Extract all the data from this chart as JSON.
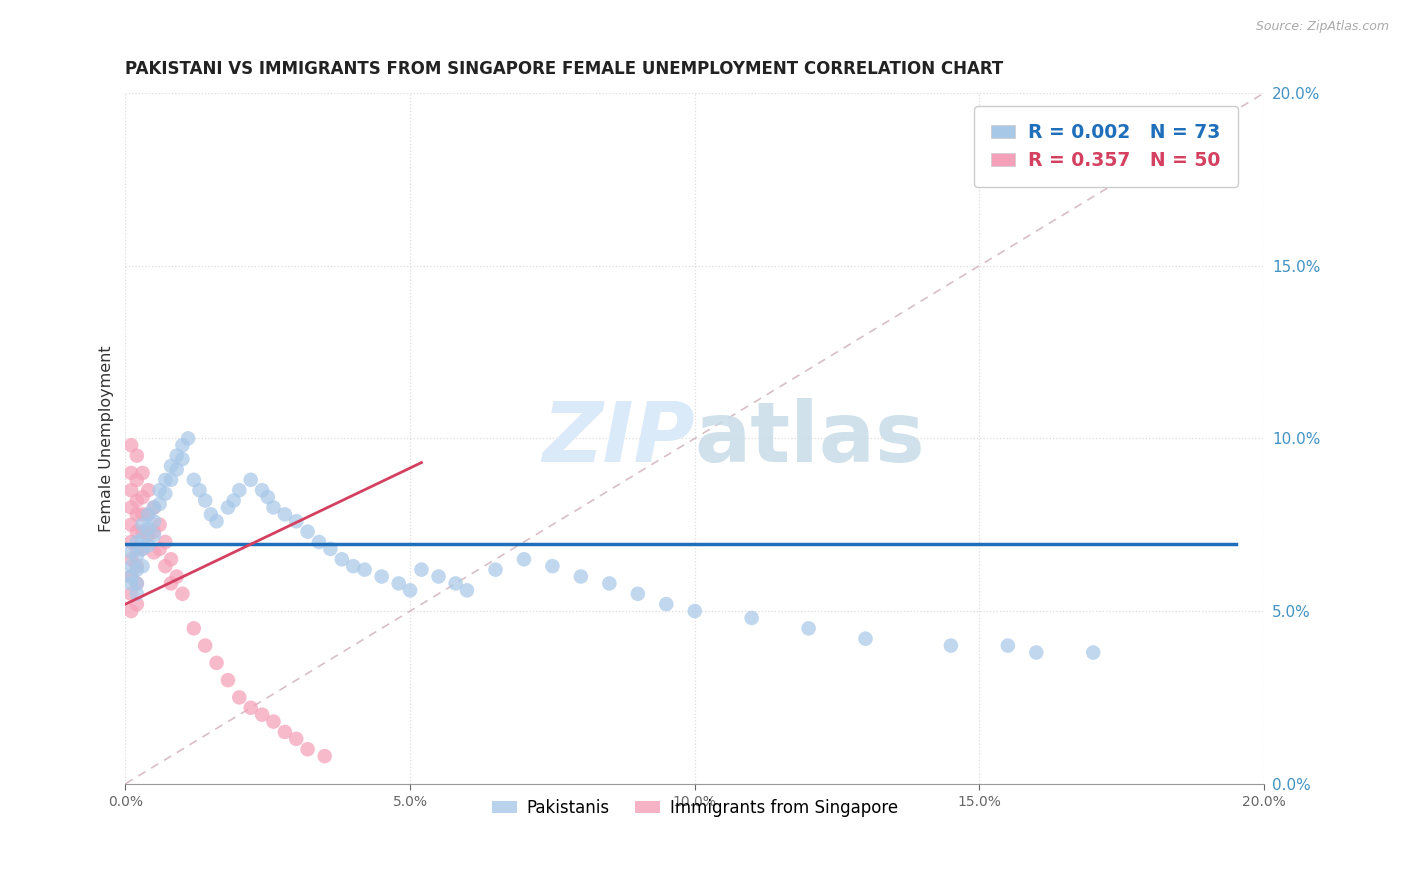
{
  "title": "PAKISTANI VS IMMIGRANTS FROM SINGAPORE FEMALE UNEMPLOYMENT CORRELATION CHART",
  "source": "Source: ZipAtlas.com",
  "ylabel": "Female Unemployment",
  "xmin": 0.0,
  "xmax": 0.2,
  "ymin": 0.0,
  "ymax": 0.2,
  "pakistanis_R": 0.002,
  "pakistanis_N": 73,
  "singapore_R": 0.357,
  "singapore_N": 50,
  "blue_color": "#a8c8e8",
  "pink_color": "#f4a0b8",
  "blue_line_color": "#1f6fba",
  "pink_line_color": "#d44060",
  "diagonal_color": "#cccccc",
  "watermark_color": "#daeaf8",
  "right_axis_color": "#4393c3",
  "grid_color": "#dddddd",
  "pk_x": [
    0.001,
    0.001,
    0.001,
    0.001,
    0.002,
    0.002,
    0.002,
    0.002,
    0.002,
    0.003,
    0.003,
    0.003,
    0.003,
    0.004,
    0.004,
    0.004,
    0.005,
    0.005,
    0.005,
    0.006,
    0.006,
    0.007,
    0.007,
    0.008,
    0.008,
    0.009,
    0.009,
    0.01,
    0.01,
    0.011,
    0.012,
    0.013,
    0.014,
    0.015,
    0.016,
    0.018,
    0.019,
    0.02,
    0.022,
    0.024,
    0.025,
    0.026,
    0.028,
    0.03,
    0.032,
    0.034,
    0.036,
    0.038,
    0.04,
    0.042,
    0.045,
    0.048,
    0.05,
    0.052,
    0.055,
    0.058,
    0.06,
    0.065,
    0.07,
    0.075,
    0.08,
    0.085,
    0.09,
    0.095,
    0.1,
    0.11,
    0.12,
    0.13,
    0.145,
    0.155,
    0.16,
    0.17,
    0.175
  ],
  "pk_y": [
    0.067,
    0.063,
    0.06,
    0.058,
    0.07,
    0.066,
    0.062,
    0.058,
    0.055,
    0.075,
    0.071,
    0.068,
    0.063,
    0.078,
    0.074,
    0.069,
    0.08,
    0.076,
    0.072,
    0.085,
    0.081,
    0.088,
    0.084,
    0.092,
    0.088,
    0.095,
    0.091,
    0.098,
    0.094,
    0.1,
    0.088,
    0.085,
    0.082,
    0.078,
    0.076,
    0.08,
    0.082,
    0.085,
    0.088,
    0.085,
    0.083,
    0.08,
    0.078,
    0.076,
    0.073,
    0.07,
    0.068,
    0.065,
    0.063,
    0.062,
    0.06,
    0.058,
    0.056,
    0.062,
    0.06,
    0.058,
    0.056,
    0.062,
    0.065,
    0.063,
    0.06,
    0.058,
    0.055,
    0.052,
    0.05,
    0.048,
    0.045,
    0.042,
    0.04,
    0.04,
    0.038,
    0.038,
    0.175
  ],
  "sg_x": [
    0.001,
    0.001,
    0.001,
    0.001,
    0.001,
    0.001,
    0.001,
    0.001,
    0.001,
    0.001,
    0.002,
    0.002,
    0.002,
    0.002,
    0.002,
    0.002,
    0.002,
    0.002,
    0.002,
    0.003,
    0.003,
    0.003,
    0.003,
    0.003,
    0.004,
    0.004,
    0.004,
    0.005,
    0.005,
    0.005,
    0.006,
    0.006,
    0.007,
    0.007,
    0.008,
    0.008,
    0.009,
    0.01,
    0.012,
    0.014,
    0.016,
    0.018,
    0.02,
    0.022,
    0.024,
    0.026,
    0.028,
    0.03,
    0.032,
    0.035
  ],
  "sg_y": [
    0.098,
    0.09,
    0.085,
    0.08,
    0.075,
    0.07,
    0.065,
    0.06,
    0.055,
    0.05,
    0.095,
    0.088,
    0.082,
    0.078,
    0.073,
    0.068,
    0.063,
    0.058,
    0.052,
    0.09,
    0.083,
    0.078,
    0.073,
    0.068,
    0.085,
    0.078,
    0.072,
    0.08,
    0.073,
    0.067,
    0.075,
    0.068,
    0.07,
    0.063,
    0.065,
    0.058,
    0.06,
    0.055,
    0.045,
    0.04,
    0.035,
    0.03,
    0.025,
    0.022,
    0.02,
    0.018,
    0.015,
    0.013,
    0.01,
    0.008
  ],
  "pk_line_y_intercept": 0.0695,
  "pk_line_slope": 0.0,
  "sg_line_x0": 0.0,
  "sg_line_y0": 0.052,
  "sg_line_x1": 0.052,
  "sg_line_y1": 0.093
}
